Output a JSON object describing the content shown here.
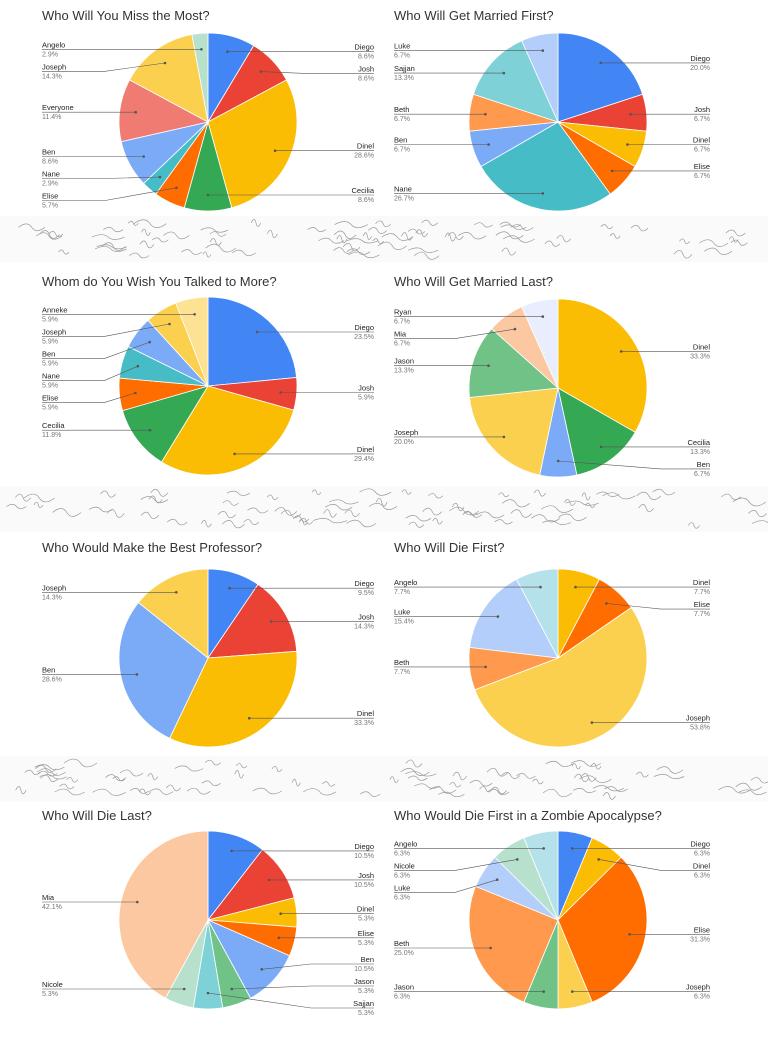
{
  "chart_data": [
    {
      "type": "pie",
      "title": "Who Will You Miss the Most?",
      "series": [
        {
          "label": "Diego",
          "pct": "8.6%",
          "value": 8.6,
          "color": "#4285F4"
        },
        {
          "label": "Josh",
          "pct": "8.6%",
          "value": 8.6,
          "color": "#EA4335"
        },
        {
          "label": "Dinel",
          "pct": "28.6%",
          "value": 28.6,
          "color": "#FBBC04"
        },
        {
          "label": "Cecilia",
          "pct": "8.6%",
          "value": 8.6,
          "color": "#34A853"
        },
        {
          "label": "Elise",
          "pct": "5.7%",
          "value": 5.7,
          "color": "#FF6D01"
        },
        {
          "label": "Nane",
          "pct": "2.9%",
          "value": 2.9,
          "color": "#46BDC6"
        },
        {
          "label": "Ben",
          "pct": "8.6%",
          "value": 8.6,
          "color": "#7BAAF7"
        },
        {
          "label": "Everyone",
          "pct": "11.4%",
          "value": 11.4,
          "color": "#F07B72"
        },
        {
          "label": "Joseph",
          "pct": "14.3%",
          "value": 14.3,
          "color": "#FCD04F"
        },
        {
          "label": "Angelo",
          "pct": "2.9%",
          "value": 2.9,
          "color": "#B7E1CD"
        }
      ]
    },
    {
      "type": "pie",
      "title": "Who Will Get Married First?",
      "series": [
        {
          "label": "Diego",
          "pct": "20.0%",
          "value": 20.0,
          "color": "#4285F4"
        },
        {
          "label": "Josh",
          "pct": "6.7%",
          "value": 6.7,
          "color": "#EA4335"
        },
        {
          "label": "Dinel",
          "pct": "6.7%",
          "value": 6.7,
          "color": "#FBBC04"
        },
        {
          "label": "Elise",
          "pct": "6.7%",
          "value": 6.7,
          "color": "#FF6D01"
        },
        {
          "label": "Nane",
          "pct": "26.7%",
          "value": 26.7,
          "color": "#46BDC6"
        },
        {
          "label": "Ben",
          "pct": "6.7%",
          "value": 6.7,
          "color": "#7BAAF7"
        },
        {
          "label": "Beth",
          "pct": "6.7%",
          "value": 6.7,
          "color": "#FF994D"
        },
        {
          "label": "Sajjan",
          "pct": "13.3%",
          "value": 13.3,
          "color": "#7ED1D7"
        },
        {
          "label": "Luke",
          "pct": "6.7%",
          "value": 6.7,
          "color": "#B3CEFB"
        }
      ]
    },
    {
      "type": "pie",
      "title": "Whom do You Wish You Talked to More?",
      "series": [
        {
          "label": "Diego",
          "pct": "23.5%",
          "value": 23.5,
          "color": "#4285F4"
        },
        {
          "label": "Josh",
          "pct": "5.9%",
          "value": 5.9,
          "color": "#EA4335"
        },
        {
          "label": "Dinel",
          "pct": "29.4%",
          "value": 29.4,
          "color": "#FBBC04"
        },
        {
          "label": "Cecilia",
          "pct": "11.8%",
          "value": 11.8,
          "color": "#34A853"
        },
        {
          "label": "Elise",
          "pct": "5.9%",
          "value": 5.9,
          "color": "#FF6D01"
        },
        {
          "label": "Nane",
          "pct": "5.9%",
          "value": 5.9,
          "color": "#46BDC6"
        },
        {
          "label": "Ben",
          "pct": "5.9%",
          "value": 5.9,
          "color": "#7BAAF7"
        },
        {
          "label": "Joseph",
          "pct": "5.9%",
          "value": 5.9,
          "color": "#FCD04F"
        },
        {
          "label": "Anneke",
          "pct": "5.9%",
          "value": 5.9,
          "color": "#FDE293"
        }
      ]
    },
    {
      "type": "pie",
      "title": "Who Will Get Married Last?",
      "series": [
        {
          "label": "Dinel",
          "pct": "33.3%",
          "value": 33.3,
          "color": "#FBBC04"
        },
        {
          "label": "Cecilia",
          "pct": "13.3%",
          "value": 13.3,
          "color": "#34A853"
        },
        {
          "label": "Ben",
          "pct": "6.7%",
          "value": 6.7,
          "color": "#7BAAF7"
        },
        {
          "label": "Joseph",
          "pct": "20.0%",
          "value": 20.0,
          "color": "#FCD04F"
        },
        {
          "label": "Jason",
          "pct": "13.3%",
          "value": 13.3,
          "color": "#71C287"
        },
        {
          "label": "Mia",
          "pct": "6.7%",
          "value": 6.7,
          "color": "#FCC8A1"
        },
        {
          "label": "Ryan",
          "pct": "6.7%",
          "value": 6.7,
          "color": "#E8EEFD"
        }
      ]
    },
    {
      "type": "pie",
      "title": "Who Would Make the Best Professor?",
      "series": [
        {
          "label": "Diego",
          "pct": "9.5%",
          "value": 9.5,
          "color": "#4285F4"
        },
        {
          "label": "Josh",
          "pct": "14.3%",
          "value": 14.3,
          "color": "#EA4335"
        },
        {
          "label": "Dinel",
          "pct": "33.3%",
          "value": 33.3,
          "color": "#FBBC04"
        },
        {
          "label": "Ben",
          "pct": "28.6%",
          "value": 28.6,
          "color": "#7BAAF7"
        },
        {
          "label": "Joseph",
          "pct": "14.3%",
          "value": 14.3,
          "color": "#FCD04F"
        }
      ]
    },
    {
      "type": "pie",
      "title": "Who Will Die First?",
      "series": [
        {
          "label": "Dinel",
          "pct": "7.7%",
          "value": 7.7,
          "color": "#FBBC04"
        },
        {
          "label": "Elise",
          "pct": "7.7%",
          "value": 7.7,
          "color": "#FF6D01"
        },
        {
          "label": "Joseph",
          "pct": "53.8%",
          "value": 53.8,
          "color": "#FCD04F"
        },
        {
          "label": "Beth",
          "pct": "7.7%",
          "value": 7.7,
          "color": "#FF994D"
        },
        {
          "label": "Luke",
          "pct": "15.4%",
          "value": 15.4,
          "color": "#B3CEFB"
        },
        {
          "label": "Angelo",
          "pct": "7.7%",
          "value": 7.7,
          "color": "#B4E1EA"
        }
      ]
    },
    {
      "type": "pie",
      "title": "Who Will Die Last?",
      "series": [
        {
          "label": "Diego",
          "pct": "10.5%",
          "value": 10.5,
          "color": "#4285F4"
        },
        {
          "label": "Josh",
          "pct": "10.5%",
          "value": 10.5,
          "color": "#EA4335"
        },
        {
          "label": "Dinel",
          "pct": "5.3%",
          "value": 5.3,
          "color": "#FBBC04"
        },
        {
          "label": "Elise",
          "pct": "5.3%",
          "value": 5.3,
          "color": "#FF6D01"
        },
        {
          "label": "Ben",
          "pct": "10.5%",
          "value": 10.5,
          "color": "#7BAAF7"
        },
        {
          "label": "Jason",
          "pct": "5.3%",
          "value": 5.3,
          "color": "#71C287"
        },
        {
          "label": "Sajjan",
          "pct": "5.3%",
          "value": 5.3,
          "color": "#7ED1D7"
        },
        {
          "label": "Nicole",
          "pct": "5.3%",
          "value": 5.3,
          "color": "#B7E1CD"
        },
        {
          "label": "Mia",
          "pct": "42.1%",
          "value": 42.1,
          "color": "#FCC8A1"
        }
      ]
    },
    {
      "type": "pie",
      "title": "Who Would Die First in a Zombie Apocalypse?",
      "series": [
        {
          "label": "Diego",
          "pct": "6.3%",
          "value": 6.3,
          "color": "#4285F4"
        },
        {
          "label": "Dinel",
          "pct": "6.3%",
          "value": 6.3,
          "color": "#FBBC04"
        },
        {
          "label": "Elise",
          "pct": "31.3%",
          "value": 31.3,
          "color": "#FF6D01"
        },
        {
          "label": "Joseph",
          "pct": "6.3%",
          "value": 6.3,
          "color": "#FCD04F"
        },
        {
          "label": "Jason",
          "pct": "6.3%",
          "value": 6.3,
          "color": "#71C287"
        },
        {
          "label": "Beth",
          "pct": "25.0%",
          "value": 25.0,
          "color": "#FF994D"
        },
        {
          "label": "Luke",
          "pct": "6.3%",
          "value": 6.3,
          "color": "#B3CEFB"
        },
        {
          "label": "Nicole",
          "pct": "6.3%",
          "value": 6.3,
          "color": "#B7E1CD"
        },
        {
          "label": "Angelo",
          "pct": "6.3%",
          "value": 6.3,
          "color": "#B4E1EA"
        }
      ]
    }
  ]
}
